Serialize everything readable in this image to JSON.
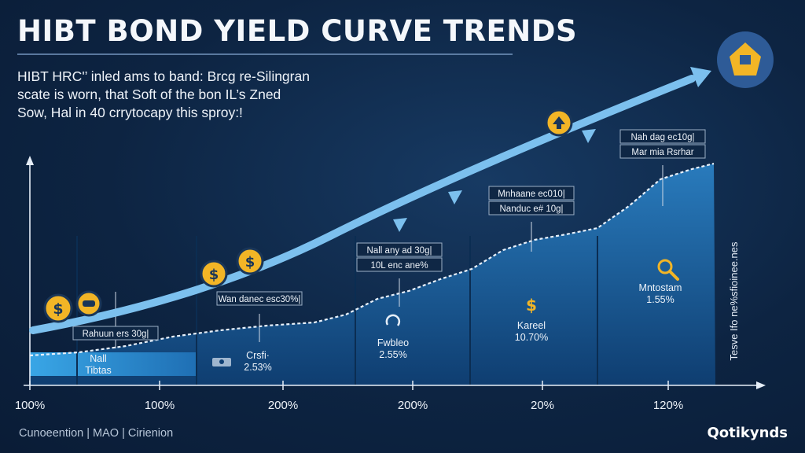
{
  "header": {
    "title": "HIBT BOND YIELD CURVE TRENDS",
    "subtitle": "HIBT HRC'’ inled ams to band: Brcg re-Silingran\nscate is worn, that Soft of the bon IL’s Zned\nSow, Hal in 40 crrytocapy this sproy:!"
  },
  "footer": {
    "left_text": "Cunoeention | MAO | Cirienion",
    "brand": "Qotikynds"
  },
  "icons": [
    "dollar-coin-icon",
    "dollar-coin-icon",
    "dollar-coin-icon",
    "car-coin-icon",
    "up-arrow-coin-icon",
    "crypto-badge-icon",
    "magnifier-icon"
  ],
  "colors": {
    "accent_arrow": "#79b9e9",
    "area_light": "#2d93d4",
    "area_dark": "#0f4e86",
    "coin": "#f2b526",
    "badge": "#2e5b97"
  },
  "chart_data": {
    "type": "area",
    "title": "HIBT BOND YIELD CURVE TRENDS",
    "x_ticks": [
      "100%",
      "100%",
      "200%",
      "200%",
      "20%",
      "120%"
    ],
    "y_axis_label": "Tesve Ifo ne%sfioinee.nes",
    "grid": false,
    "segments": [
      {
        "label": "Nall\nTibtas",
        "value": ""
      },
      {
        "label": "Crsfi·\n2.53%",
        "value": "2.53%"
      },
      {
        "label": "Fwbleo\n2.55%",
        "value": "2.55%"
      },
      {
        "label": "Kareel\n10.70%",
        "value": "10.70%"
      },
      {
        "label": "Mntostam\n1.55%",
        "value": "1.55%"
      }
    ],
    "callouts": [
      {
        "lines": [
          "Rahuun ers 30g|"
        ]
      },
      {
        "lines": [
          "Wan danec esc30%|"
        ]
      },
      {
        "lines": [
          "Nall any ad 30g|",
          "10L enc ane%"
        ]
      },
      {
        "lines": [
          "Mnhaane ec010|",
          "Nanduc e# 10g|"
        ]
      },
      {
        "lines": [
          "Nah dag ec10g|",
          "Mar mia Rsrhar"
        ]
      }
    ]
  }
}
